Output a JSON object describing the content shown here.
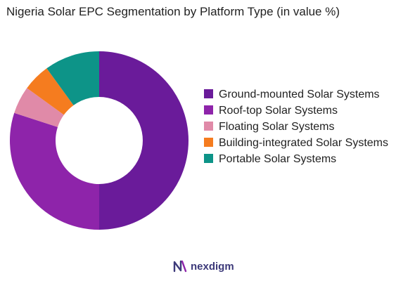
{
  "chart_data": {
    "type": "pie",
    "donut": true,
    "title": "Nigeria Solar EPC Segmentation by Platform Type (in value %)",
    "categories": [
      "Ground-mounted Solar Systems",
      "Roof-top Solar Systems",
      "Floating Solar Systems",
      "Building-integrated Solar Systems",
      "Portable Solar Systems"
    ],
    "values": [
      50,
      30,
      5,
      5,
      10
    ],
    "colors": [
      "#6a1b9a",
      "#8e24aa",
      "#e08aa8",
      "#f57c1f",
      "#0d9488"
    ],
    "legend_position": "right"
  },
  "brand": {
    "name": "nexdigm",
    "icon": "nexdigm-logo-icon"
  }
}
